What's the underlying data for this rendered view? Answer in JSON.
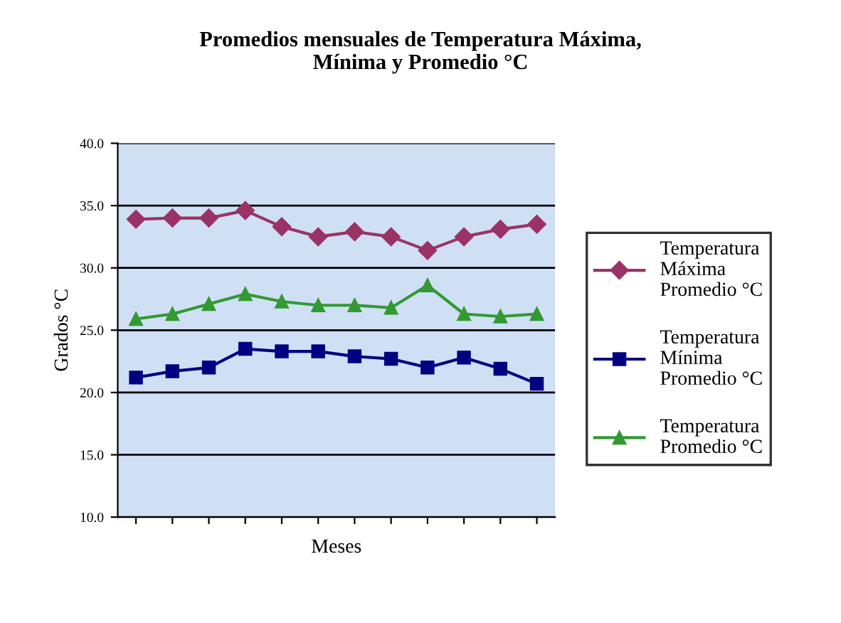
{
  "chart_data": {
    "type": "line",
    "title": "Promedios mensuales de Temperatura Máxima,\nMínima y Promedio °C",
    "xlabel": "Meses",
    "ylabel": "Grados °C",
    "categories": [
      null,
      null,
      null,
      null,
      null,
      null,
      null,
      null,
      null,
      null,
      null,
      null
    ],
    "series": [
      {
        "name": "Temperatura\nMáxima\nPromedio °C",
        "color": "#993366",
        "marker": "diamond",
        "values": [
          33.9,
          34.0,
          34.0,
          34.6,
          33.3,
          32.5,
          32.9,
          32.5,
          31.4,
          32.5,
          33.1,
          33.5
        ]
      },
      {
        "name": "Temperatura\nMínima\nPromedio °C",
        "color": "#000080",
        "marker": "square",
        "values": [
          21.2,
          21.7,
          22.0,
          23.5,
          23.3,
          23.3,
          22.9,
          22.7,
          22.0,
          22.8,
          21.9,
          20.7
        ]
      },
      {
        "name": "Temperatura\nPromedio °C",
        "color": "#339933",
        "marker": "triangle",
        "values": [
          25.9,
          26.3,
          27.1,
          27.9,
          27.3,
          27.0,
          27.0,
          26.8,
          28.6,
          26.3,
          26.1,
          26.3
        ]
      }
    ],
    "ylim": [
      10,
      40
    ],
    "yticks": [
      {
        "value": 10,
        "label": "10.0"
      },
      {
        "value": 15,
        "label": "15.0"
      },
      {
        "value": 20,
        "label": "20.0"
      },
      {
        "value": 25,
        "label": "25.0"
      },
      {
        "value": 30,
        "label": "30.0"
      },
      {
        "value": 35,
        "label": "35.0"
      },
      {
        "value": 40,
        "label": "40.0"
      }
    ],
    "grid": "y",
    "legend": "right"
  }
}
